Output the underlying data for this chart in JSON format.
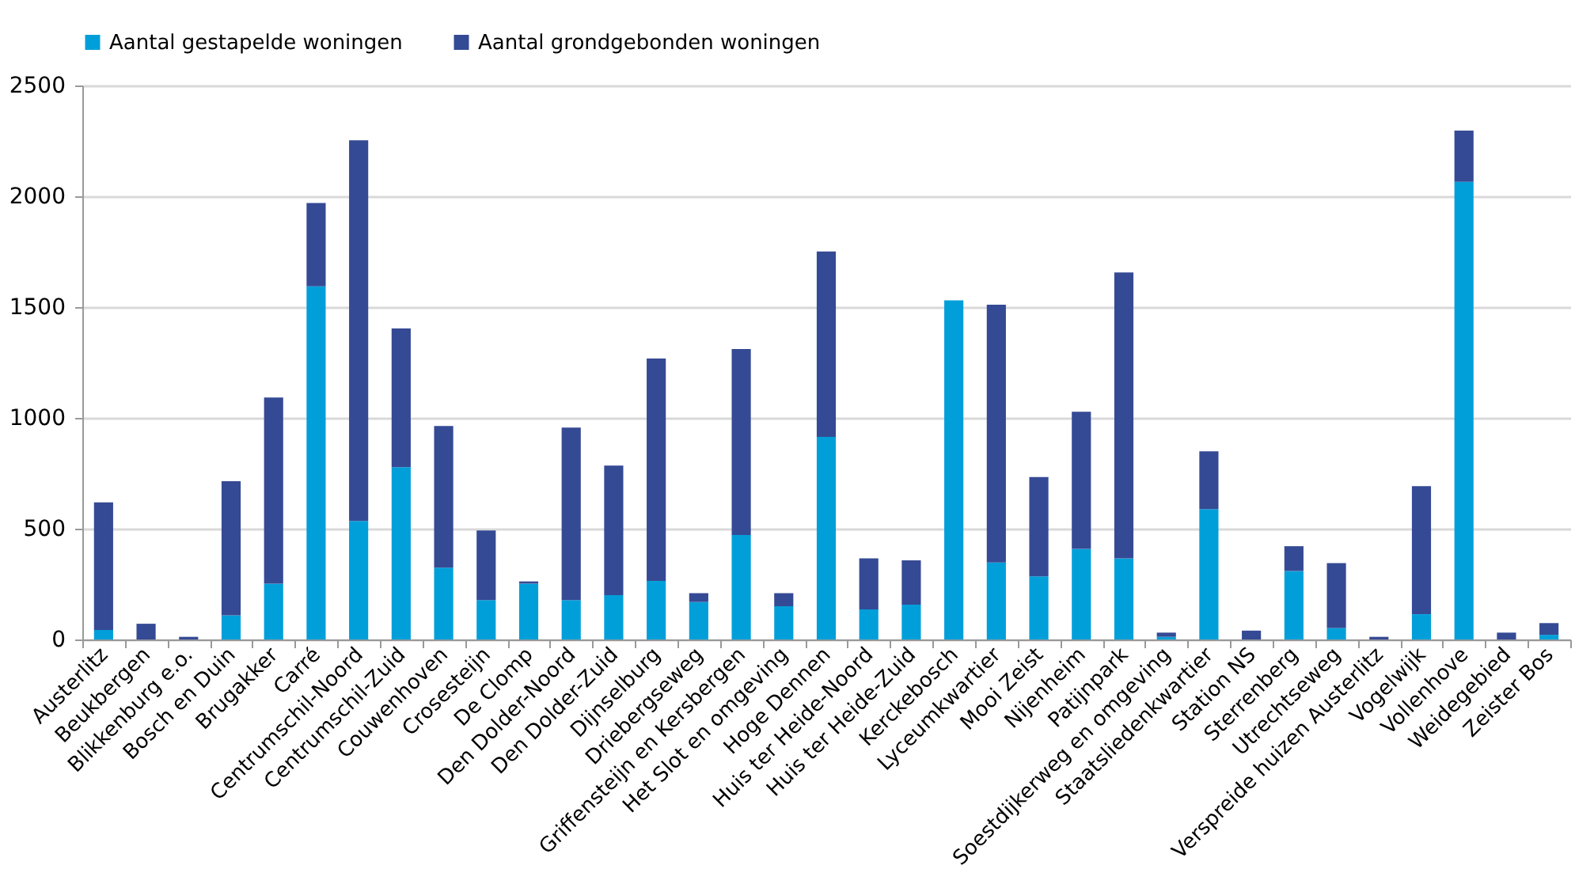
{
  "chart_data": {
    "type": "bar",
    "stacked": true,
    "legend": "top",
    "grid": "y",
    "categories": [
      "Austerlitz",
      "Beukbergen",
      "Blikkenburg e.o.",
      "Bosch en Duin",
      "Brugakker",
      "Carré",
      "Centrumschil-Noord",
      "Centrumschil-Zuid",
      "Couwenhoven",
      "Crosesteijn",
      "De Clomp",
      "Den Dolder-Noord",
      "Den Dolder-Zuid",
      "Dijnselburg",
      "Driebergseweg",
      "Griffensteijn en Kersbergen",
      "Het Slot en omgeving",
      "Hoge Dennen",
      "Huis ter Heide-Noord",
      "Huis ter Heide-Zuid",
      "Kerckebosch",
      "Lyceumkwartier",
      "Mooi Zeist",
      "Nijenheim",
      "Patijnpark",
      "Soestdijkerweg en omgeving",
      "Staatsliedenkwartier",
      "Station NS",
      "Sterrenberg",
      "Utrechtseweg",
      "Verspreide huizen Austerlitz",
      "Vogelwijk",
      "Vollenhove",
      "Weidegebied",
      "Zeister Bos"
    ],
    "series": [
      {
        "name": "Aantal gestapelde woningen",
        "color": "#009fda",
        "values": [
          43,
          0,
          0,
          109,
          252,
          1594,
          535,
          778,
          324,
          178,
          252,
          178,
          200,
          264,
          169,
          471,
          150,
          914,
          136,
          157,
          1530,
          347,
          285,
          409,
          366,
          12,
          588,
          0,
          309,
          52,
          0,
          114,
          2065,
          0,
          21
        ]
      },
      {
        "name": "Aantal grondgebonden woningen",
        "color": "#354a94",
        "values": [
          576,
          71,
          12,
          605,
          840,
          376,
          1718,
          626,
          639,
          314,
          10,
          778,
          585,
          1004,
          40,
          840,
          59,
          837,
          230,
          200,
          0,
          1164,
          448,
          619,
          1290,
          19,
          261,
          40,
          112,
          293,
          12,
          578,
          231,
          31,
          53
        ]
      }
    ],
    "ylim": [
      0,
      2500
    ],
    "yticks": [
      0,
      500,
      1000,
      1500,
      2000,
      2500
    ]
  }
}
